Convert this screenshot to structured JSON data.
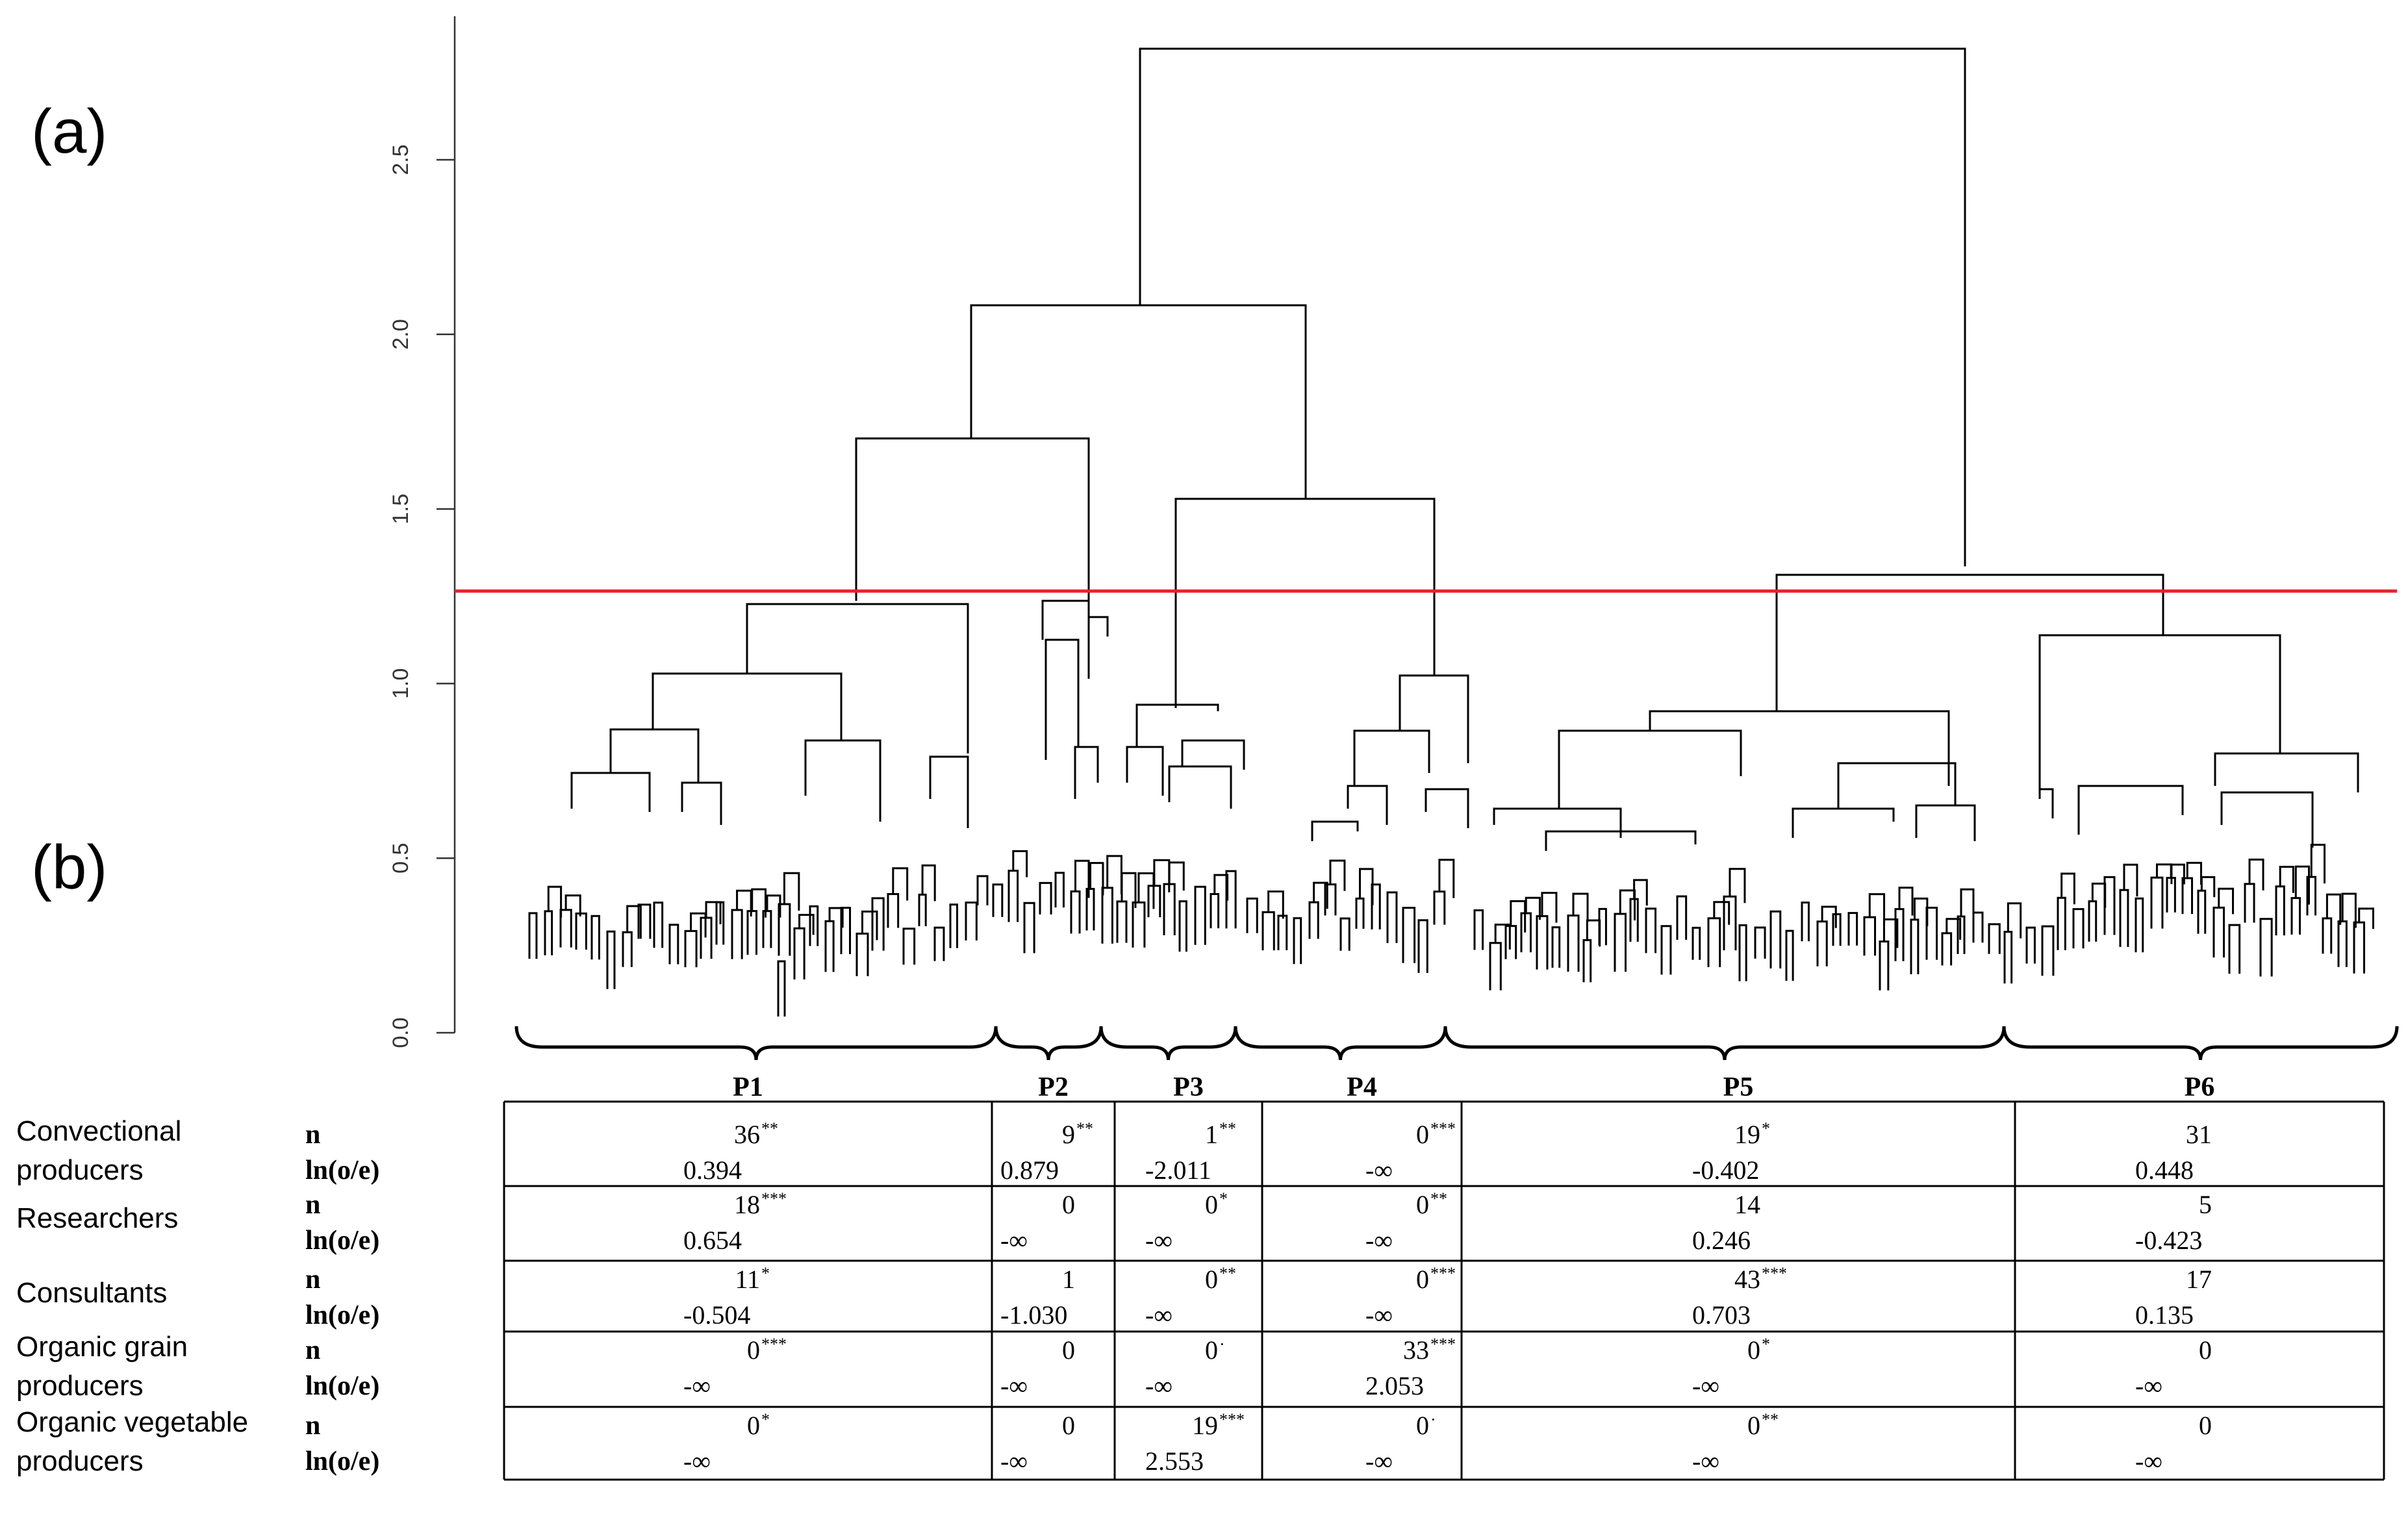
{
  "panel_labels": [
    "(a)",
    "(b)"
  ],
  "y_axis": {
    "ticks": [
      "0.0",
      "0.5",
      "1.0",
      "1.5",
      "2.0",
      "2.5"
    ]
  },
  "cut_line_color": "#e8202a",
  "clusters": [
    "P1",
    "P2",
    "P3",
    "P4",
    "P5",
    "P6"
  ],
  "groups": [
    {
      "name": "Convectional\nproducers",
      "n": [
        {
          "v": "36",
          "s": "**"
        },
        {
          "v": "9",
          "s": "**"
        },
        {
          "v": "1",
          "s": "**"
        },
        {
          "v": "0",
          "s": "***"
        },
        {
          "v": "19",
          "s": "*"
        },
        {
          "v": "31",
          "s": ""
        }
      ],
      "ln": [
        "0.394",
        "0.879",
        "-2.011",
        "-∞",
        "-0.402",
        "0.448"
      ]
    },
    {
      "name": "Researchers",
      "n": [
        {
          "v": "18",
          "s": "***"
        },
        {
          "v": "0",
          "s": ""
        },
        {
          "v": "0",
          "s": "*"
        },
        {
          "v": "0",
          "s": "**"
        },
        {
          "v": "14",
          "s": ""
        },
        {
          "v": "5",
          "s": ""
        }
      ],
      "ln": [
        "0.654",
        "-∞",
        "-∞",
        "-∞",
        "0.246",
        "-0.423"
      ]
    },
    {
      "name": "Consultants",
      "n": [
        {
          "v": "11",
          "s": "*"
        },
        {
          "v": "1",
          "s": ""
        },
        {
          "v": "0",
          "s": "**"
        },
        {
          "v": "0",
          "s": "***"
        },
        {
          "v": "43",
          "s": "***"
        },
        {
          "v": "17",
          "s": ""
        }
      ],
      "ln": [
        "-0.504",
        "-1.030",
        "-∞",
        "-∞",
        "0.703",
        "0.135"
      ]
    },
    {
      "name": "Organic grain\nproducers",
      "n": [
        {
          "v": "0",
          "s": "***"
        },
        {
          "v": "0",
          "s": ""
        },
        {
          "v": "0",
          "s": "·"
        },
        {
          "v": "33",
          "s": "***"
        },
        {
          "v": "0",
          "s": "*"
        },
        {
          "v": "0",
          "s": ""
        }
      ],
      "ln": [
        "-∞",
        "-∞",
        "-∞",
        "2.053",
        "-∞",
        "-∞"
      ]
    },
    {
      "name": "Organic vegetable\nproducers",
      "n": [
        {
          "v": "0",
          "s": "*"
        },
        {
          "v": "0",
          "s": ""
        },
        {
          "v": "19",
          "s": "***"
        },
        {
          "v": "0",
          "s": "·"
        },
        {
          "v": "0",
          "s": "**"
        },
        {
          "v": "0",
          "s": ""
        }
      ],
      "ln": [
        "-∞",
        "-∞",
        "2.553",
        "-∞",
        "-∞",
        "-∞"
      ]
    }
  ],
  "row_labels": {
    "n": "n",
    "ln": "ln(o/e)"
  }
}
